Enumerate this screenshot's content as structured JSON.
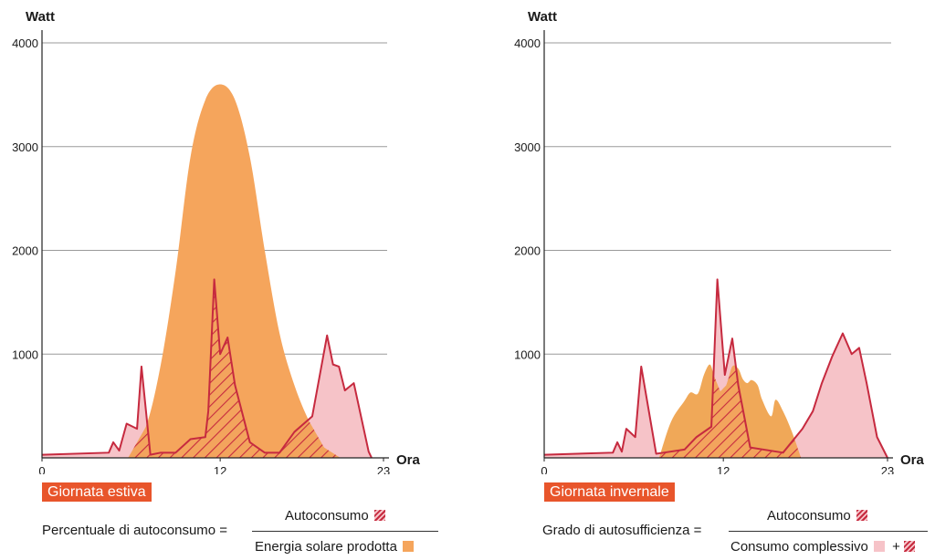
{
  "chart_data": [
    {
      "type": "area",
      "title": "Giornata estiva",
      "ylabel": "Watt",
      "xlabel": "Ora",
      "xlim": [
        0,
        23
      ],
      "ylim": [
        0,
        4000
      ],
      "yticks": [
        1000,
        2000,
        3000,
        4000
      ],
      "xticks": [
        0,
        12,
        23
      ],
      "grid": true,
      "series": [
        {
          "name": "Energia solare prodotta",
          "color": "#f5a55c",
          "x": [
            5.8,
            7,
            8,
            9,
            10,
            11,
            12,
            13,
            14,
            15,
            16,
            17,
            18,
            19,
            20.1
          ],
          "values": [
            0,
            300,
            900,
            1800,
            2900,
            3450,
            3600,
            3450,
            2900,
            2000,
            1200,
            700,
            350,
            100,
            0
          ]
        },
        {
          "name": "Consumo complessivo",
          "color": "#f6c3c8",
          "stroke": "#c62a3f",
          "x": [
            0,
            4.5,
            4.8,
            5.2,
            5.7,
            6.4,
            6.7,
            7.3,
            8,
            9,
            10,
            11,
            11.2,
            11.6,
            12,
            12.5,
            13,
            14,
            15,
            16,
            17,
            18.2,
            19.2,
            19.6,
            20,
            20.4,
            21,
            22,
            22.2
          ],
          "values": [
            30,
            50,
            150,
            70,
            330,
            280,
            880,
            30,
            50,
            50,
            180,
            200,
            450,
            1720,
            1000,
            1160,
            700,
            150,
            50,
            50,
            250,
            400,
            1180,
            900,
            880,
            650,
            720,
            60,
            0
          ]
        }
      ]
    },
    {
      "type": "area",
      "title": "Giornata invernale",
      "ylabel": "Watt",
      "xlabel": "Ora",
      "xlim": [
        0,
        23
      ],
      "ylim": [
        0,
        4000
      ],
      "yticks": [
        1000,
        2000,
        3000,
        4000
      ],
      "xticks": [
        0,
        12,
        23
      ],
      "grid": true,
      "series": [
        {
          "name": "Energia solare prodotta",
          "color": "#f0a858",
          "x": [
            7.7,
            8.5,
            9.4,
            9.8,
            10.3,
            10.7,
            11.1,
            11.4,
            11.8,
            12.2,
            12.6,
            13,
            13.3,
            13.6,
            13.9,
            14.3,
            14.6,
            15.2,
            15.5,
            16,
            16.6,
            17.2
          ],
          "values": [
            0,
            350,
            550,
            630,
            620,
            800,
            900,
            780,
            640,
            700,
            880,
            860,
            760,
            720,
            750,
            700,
            560,
            400,
            560,
            450,
            250,
            0
          ]
        },
        {
          "name": "Consumo complessivo",
          "color": "#f6c3c8",
          "stroke": "#c62a3f",
          "x": [
            0,
            4.6,
            4.9,
            5.2,
            5.5,
            6.1,
            6.5,
            7.5,
            8,
            9.4,
            10.2,
            11.2,
            11.6,
            12.1,
            12.6,
            13,
            13.8,
            16,
            17.3,
            18,
            18.6,
            19.3,
            20,
            20.6,
            21.1,
            21.6,
            22.3,
            23
          ],
          "values": [
            30,
            50,
            150,
            60,
            280,
            200,
            880,
            40,
            50,
            80,
            200,
            300,
            1720,
            800,
            1150,
            700,
            100,
            50,
            280,
            450,
            720,
            980,
            1200,
            1000,
            1060,
            720,
            200,
            0
          ]
        }
      ]
    }
  ],
  "formulas": {
    "left": {
      "lhs": "Percentuale di autoconsumo =",
      "numerator": "Autoconsumo",
      "denominator": "Energia solare prodotta"
    },
    "right": {
      "lhs": "Grado di autosufficienza =",
      "numerator": "Autoconsumo",
      "denominator": "Consumo complessivo",
      "plus": "+"
    }
  },
  "colors": {
    "hatch": "#c62a3f",
    "tag": "#e8552b",
    "grid": "#9a9a9a"
  }
}
